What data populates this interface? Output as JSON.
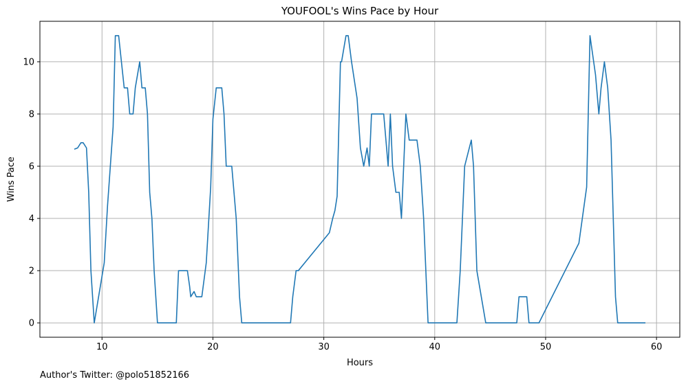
{
  "chart_data": {
    "type": "line",
    "title": "YOUFOOL's Wins Pace by Hour",
    "xlabel": "Hours",
    "ylabel": "Wins Pace",
    "xlim": [
      4.4,
      62.1
    ],
    "ylim": [
      -0.55,
      11.55
    ],
    "xticks": [
      10,
      20,
      30,
      40,
      50,
      60
    ],
    "yticks": [
      0,
      2,
      4,
      6,
      8,
      10
    ],
    "grid": true,
    "series": [
      {
        "color": "#1f77b4",
        "x": [
          7.5,
          7.8,
          8.1,
          8.3,
          8.6,
          8.8,
          9.0,
          9.3,
          10.2,
          10.5,
          11.0,
          11.2,
          11.5,
          12.0,
          12.3,
          12.5,
          12.8,
          13.0,
          13.4,
          13.6,
          13.9,
          14.1,
          14.3,
          14.5,
          14.7,
          15.0,
          16.7,
          16.9,
          17.3,
          17.7,
          17.9,
          18.0,
          18.3,
          18.5,
          18.8,
          18.9,
          19.0,
          19.4,
          19.8,
          20.0,
          20.3,
          20.5,
          20.8,
          21.0,
          21.2,
          21.7,
          22.1,
          22.4,
          22.6,
          27.0,
          27.2,
          27.5,
          27.7,
          30.5,
          30.8,
          31.0,
          31.2,
          31.5,
          31.6,
          32.0,
          32.2,
          32.5,
          33.0,
          33.3,
          33.6,
          33.9,
          34.1,
          34.3,
          34.6,
          35.0,
          35.4,
          35.6,
          35.8,
          36.0,
          36.2,
          36.5,
          36.8,
          37.0,
          37.4,
          37.7,
          38.4,
          38.7,
          39.0,
          39.4,
          42.0,
          42.3,
          42.7,
          43.0,
          43.3,
          43.5,
          43.8,
          44.2,
          44.6,
          44.8,
          45.0,
          47.4,
          47.6,
          48.0,
          48.3,
          48.5,
          49.4,
          53.0,
          53.7,
          54.0,
          54.5,
          54.8,
          55.0,
          55.3,
          55.6,
          55.9,
          56.3,
          56.5,
          56.8,
          59.0
        ],
        "y": [
          6.65,
          6.7,
          6.9,
          6.9,
          6.7,
          5.0,
          2.0,
          0.0,
          2.3,
          4.5,
          7.5,
          11.0,
          11.0,
          9.0,
          9.0,
          8.0,
          8.0,
          9.0,
          10.0,
          9.0,
          9.0,
          8.0,
          5.0,
          4.0,
          2.0,
          0.0,
          0.0,
          2.0,
          2.0,
          2.0,
          1.4,
          1.0,
          1.2,
          1.0,
          1.0,
          1.0,
          1.0,
          2.3,
          5.2,
          7.8,
          9.0,
          9.0,
          9.0,
          8.0,
          6.0,
          6.0,
          4.0,
          1.0,
          0.0,
          0.0,
          1.0,
          2.0,
          2.0,
          3.45,
          4.0,
          4.3,
          4.85,
          10.0,
          10.0,
          11.0,
          11.0,
          10.0,
          8.6,
          6.7,
          6.0,
          6.7,
          6.0,
          8.0,
          8.0,
          8.0,
          8.0,
          7.0,
          6.0,
          8.0,
          6.0,
          5.0,
          5.0,
          4.0,
          8.0,
          7.0,
          7.0,
          6.0,
          4.0,
          0.0,
          0.0,
          2.0,
          6.0,
          6.5,
          7.0,
          6.0,
          2.0,
          1.0,
          0.0,
          0.0,
          0.0,
          0.0,
          1.0,
          1.0,
          1.0,
          0.0,
          0.0,
          3.05,
          5.2,
          11.0,
          9.5,
          8.0,
          9.0,
          10.0,
          9.0,
          7.0,
          1.0,
          0.0,
          0.0,
          0.0
        ]
      }
    ]
  },
  "footer_text": "Author's Twitter: @polo51852166"
}
